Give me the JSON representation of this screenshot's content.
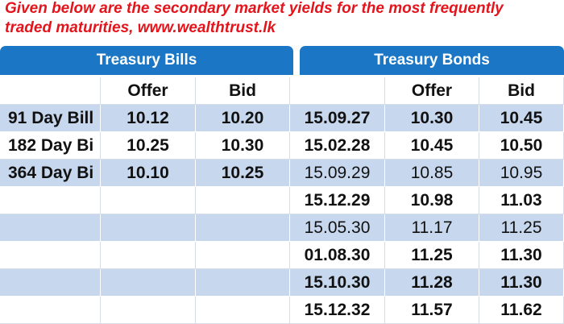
{
  "header": {
    "line1": "Given below are the secondary market yields for the most frequently",
    "line2": "traded maturities, www.wealthtrust.lk"
  },
  "table": {
    "groups": [
      "Treasury Bills",
      "Treasury Bonds"
    ],
    "columns": [
      "Offer",
      "Bid",
      "Offer",
      "Bid"
    ],
    "bills": [
      [
        "91 Day Bill",
        "10.12",
        "10.20"
      ],
      [
        "182 Day Bi",
        "10.25",
        "10.30"
      ],
      [
        "364 Day Bi",
        "10.10",
        "10.25"
      ]
    ],
    "bonds": [
      [
        "15.09.27",
        "10.30",
        "10.45"
      ],
      [
        "15.02.28",
        "10.45",
        "10.50"
      ],
      [
        "15.09.29",
        "10.85",
        "10.95"
      ],
      [
        "15.12.29",
        "10.98",
        "11.03"
      ],
      [
        "15.05.30",
        "11.17",
        "11.25"
      ],
      [
        "01.08.30",
        "11.25",
        "11.30"
      ],
      [
        "15.10.30",
        "11.28",
        "11.30"
      ],
      [
        "15.12.32",
        "11.57",
        "11.62"
      ]
    ]
  }
}
